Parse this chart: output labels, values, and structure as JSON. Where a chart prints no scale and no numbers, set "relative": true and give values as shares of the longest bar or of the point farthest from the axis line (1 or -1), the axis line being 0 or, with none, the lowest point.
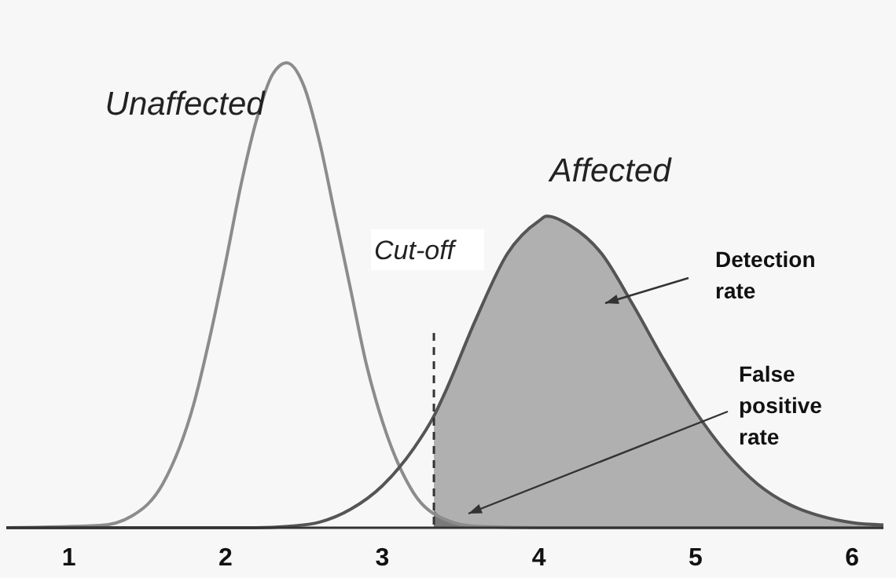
{
  "chart_data": {
    "type": "line",
    "relative": true,
    "xlim": [
      0.6,
      6.2
    ],
    "xticks": [
      1,
      2,
      3,
      4,
      5,
      6
    ],
    "series": [
      {
        "name": null,
        "type": "area",
        "color": "#b0b0b0",
        "x": [
          3.33,
          3.4,
          3.6,
          3.8,
          4.0,
          4.05,
          4.2,
          4.4,
          4.6,
          4.8,
          5.0,
          5.2,
          5.4,
          5.6,
          5.8,
          6.0,
          6.2
        ],
        "values": [
          0.24,
          0.29,
          0.45,
          0.59,
          0.66,
          0.67,
          0.65,
          0.59,
          0.48,
          0.36,
          0.25,
          0.16,
          0.093,
          0.05,
          0.025,
          0.011,
          0.006
        ]
      },
      {
        "name": null,
        "type": "area",
        "color": "#7a7a7a",
        "x": [
          3.33,
          3.4,
          3.6,
          4.0
        ],
        "values": [
          0.038,
          0.018,
          0.003,
          0
        ]
      },
      {
        "name": "Unaffected",
        "color": "#8c8c8c",
        "x": [
          0.6,
          1.2,
          1.4,
          1.6,
          1.8,
          1.9,
          2.0,
          2.1,
          2.2,
          2.3,
          2.39,
          2.5,
          2.6,
          2.7,
          2.8,
          2.9,
          3.0,
          3.2,
          3.4,
          3.6,
          4.0,
          6.2
        ],
        "values": [
          0,
          0.005,
          0.025,
          0.095,
          0.27,
          0.41,
          0.57,
          0.74,
          0.88,
          0.975,
          1,
          0.95,
          0.83,
          0.67,
          0.51,
          0.35,
          0.23,
          0.075,
          0.018,
          0.003,
          0,
          0
        ]
      },
      {
        "name": "Affected",
        "color": "#555555",
        "x": [
          0.6,
          2.2,
          2.4,
          2.6,
          2.8,
          3.0,
          3.2,
          3.33,
          3.4,
          3.6,
          3.8,
          4.0,
          4.05,
          4.2,
          4.4,
          4.6,
          4.8,
          5.0,
          5.2,
          5.4,
          5.6,
          5.8,
          6.0,
          6.2
        ],
        "values": [
          0,
          0,
          0.003,
          0.012,
          0.04,
          0.09,
          0.17,
          0.24,
          0.29,
          0.45,
          0.59,
          0.66,
          0.67,
          0.65,
          0.59,
          0.48,
          0.36,
          0.25,
          0.16,
          0.093,
          0.05,
          0.025,
          0.011,
          0.006
        ]
      }
    ],
    "ref_lines": [
      {
        "axis": "x",
        "value": 3.33,
        "label": "Cut-off",
        "line_style": "dashed"
      }
    ],
    "annotations": [
      "Detection rate",
      "False positive rate"
    ]
  }
}
